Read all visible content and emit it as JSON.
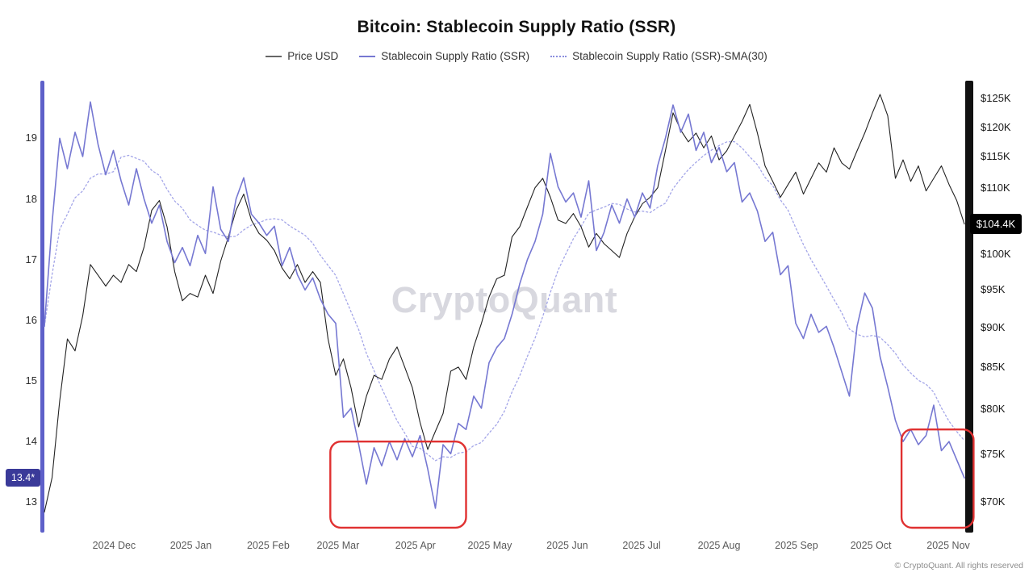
{
  "title": "Bitcoin: Stablecoin Supply Ratio (SSR)",
  "watermark": "CryptoQuant",
  "footer": "© CryptoQuant. All rights reserved",
  "legend": [
    {
      "label": "Price USD",
      "color": "#666666",
      "line_style": "solid"
    },
    {
      "label": "Stablecoin Supply Ratio (SSR)",
      "color": "#7678d2",
      "line_style": "solid"
    },
    {
      "label": "Stablecoin Supply Ratio (SSR)-SMA(30)",
      "color": "#8b8ede",
      "line_style": "dotted"
    }
  ],
  "left_axis": {
    "ticks": [
      {
        "label": "13",
        "value": 13
      },
      {
        "label": "14",
        "value": 14
      },
      {
        "label": "15",
        "value": 15
      },
      {
        "label": "16",
        "value": 16
      },
      {
        "label": "17",
        "value": 17
      },
      {
        "label": "18",
        "value": 18
      },
      {
        "label": "19",
        "value": 19
      }
    ],
    "badge": {
      "label": "13.4*",
      "value": 13.4,
      "bg": "#3a3a99",
      "fg": "#ffffff"
    }
  },
  "right_axis": {
    "ticks": [
      {
        "label": "$70K",
        "value": 70
      },
      {
        "label": "$75K",
        "value": 75
      },
      {
        "label": "$80K",
        "value": 80
      },
      {
        "label": "$85K",
        "value": 85
      },
      {
        "label": "$90K",
        "value": 90
      },
      {
        "label": "$95K",
        "value": 95
      },
      {
        "label": "$100K",
        "value": 100
      },
      {
        "label": "$110K",
        "value": 110
      },
      {
        "label": "$115K",
        "value": 115
      },
      {
        "label": "$120K",
        "value": 120
      },
      {
        "label": "$125K",
        "value": 125
      }
    ],
    "badge": {
      "label": "$104.4K",
      "value": 104.4,
      "bg": "#000000",
      "fg": "#ffffff"
    }
  },
  "x_axis": {
    "labels": [
      "2024 Dec",
      "2025 Jan",
      "2025 Feb",
      "2025 Mar",
      "2025 Apr",
      "2025 May",
      "2025 Jun",
      "2025 Jul",
      "2025 Aug",
      "2025 Sep",
      "2025 Oct",
      "2025 Nov"
    ],
    "tick_indices": [
      9.1,
      19.1,
      29.2,
      38.3,
      48.4,
      58.1,
      68.2,
      77.9,
      88.0,
      98.1,
      107.8,
      117.9
    ]
  },
  "chart_data": {
    "type": "line",
    "x_unit": "time, Nov 2024 to Nov 2025, ~3-day sampling per point",
    "left_axis_label": "Stablecoin Supply Ratio (SSR)",
    "right_axis_label": "Price USD",
    "left_axis_range": [
      12.5,
      19.95
    ],
    "right_axis_range": [
      67,
      128.3
    ],
    "right_axis_scale": "log",
    "grid": false,
    "legend_position": "top",
    "colors": {
      "price": "#222222",
      "ssr": "#7678d2",
      "sma": "#a3a5e8",
      "annotation": "#e03131",
      "left_axis_bar": "#5e60c9",
      "right_axis_bar": "#111111"
    },
    "series": [
      {
        "id": "price",
        "name": "Price USD",
        "axis": "right",
        "unit": "USD thousands",
        "last_value": 104.4,
        "values": [
          69,
          72.5,
          81,
          88.5,
          87,
          91.5,
          98.5,
          97,
          95.5,
          97,
          96,
          98.5,
          97.5,
          101,
          106.5,
          108,
          104,
          97.5,
          93.5,
          94.5,
          94,
          97,
          94.5,
          99,
          102.5,
          106.5,
          109,
          105,
          103,
          102,
          100.5,
          98,
          96.5,
          98.5,
          96,
          97.5,
          96,
          88.5,
          84,
          86,
          82.5,
          78,
          81.5,
          84,
          83.5,
          86,
          87.5,
          85,
          82.5,
          78.5,
          75.5,
          77.5,
          79.5,
          84.5,
          85,
          83.5,
          87.5,
          90.5,
          94,
          96.5,
          97,
          102.5,
          104,
          107,
          110,
          111.5,
          108.5,
          105,
          104.5,
          106,
          104,
          101,
          103,
          101.5,
          100.5,
          99.5,
          103,
          105.5,
          107.5,
          108.5,
          110,
          116,
          122.5,
          119.5,
          117.5,
          119,
          116.5,
          118.5,
          114.5,
          116,
          118.5,
          121,
          124,
          119,
          113.5,
          111,
          108.5,
          110.5,
          112.5,
          109,
          111.5,
          114,
          112.5,
          116.5,
          114,
          113,
          116,
          119,
          122.5,
          125.8,
          122,
          111.5,
          114.5,
          111,
          113.5,
          109.5,
          111.5,
          113.5,
          110.5,
          108,
          104.4
        ]
      },
      {
        "id": "ssr",
        "name": "Stablecoin Supply Ratio (SSR)",
        "axis": "left",
        "last_value": 13.4,
        "values": [
          15.9,
          17.6,
          19.0,
          18.5,
          19.1,
          18.7,
          19.6,
          18.9,
          18.4,
          18.8,
          18.3,
          17.9,
          18.5,
          18.0,
          17.6,
          17.9,
          17.3,
          16.95,
          17.2,
          16.9,
          17.4,
          17.1,
          18.2,
          17.5,
          17.3,
          18.0,
          18.35,
          17.75,
          17.6,
          17.4,
          17.55,
          16.9,
          17.2,
          16.75,
          16.5,
          16.7,
          16.35,
          16.1,
          15.95,
          14.4,
          14.55,
          13.95,
          13.3,
          13.9,
          13.6,
          14.0,
          13.7,
          14.05,
          13.75,
          14.1,
          13.55,
          12.9,
          13.95,
          13.8,
          14.3,
          14.2,
          14.75,
          14.55,
          15.3,
          15.55,
          15.7,
          16.1,
          16.6,
          17.0,
          17.3,
          17.75,
          18.75,
          18.2,
          17.95,
          18.1,
          17.7,
          18.3,
          17.15,
          17.45,
          17.9,
          17.6,
          18.0,
          17.7,
          18.1,
          17.85,
          18.55,
          19.0,
          19.55,
          19.1,
          19.4,
          18.8,
          19.1,
          18.6,
          18.85,
          18.45,
          18.6,
          17.95,
          18.1,
          17.8,
          17.3,
          17.45,
          16.75,
          16.9,
          15.95,
          15.7,
          16.1,
          15.8,
          15.9,
          15.55,
          15.15,
          14.75,
          15.9,
          16.45,
          16.2,
          15.4,
          14.9,
          14.35,
          14.0,
          14.2,
          13.95,
          14.1,
          14.6,
          13.85,
          14.0,
          13.7,
          13.4
        ]
      },
      {
        "id": "sma",
        "name": "Stablecoin Supply Ratio (SSR)-SMA(30)",
        "axis": "left",
        "style": "dotted",
        "derived": "trailing moving average of ssr series, SMA(30)",
        "window_points": 10
      }
    ],
    "highlight_boxes": [
      {
        "start_index": 37.3,
        "end_index": 55.0,
        "top_value": 14.0,
        "bottom_value": 12.58,
        "note": "red annotation around Mar–Apr 2025 SSR lows"
      },
      {
        "start_index": 111.8,
        "end_index": 121.2,
        "top_value": 14.2,
        "bottom_value": 12.58,
        "note": "red annotation around Oct–Nov 2025 SSR lows"
      }
    ]
  }
}
